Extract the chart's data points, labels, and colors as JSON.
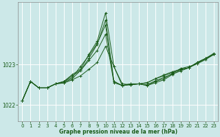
{
  "xlabel": "Graphe pression niveau de la mer (hPa)",
  "ylabel": "",
  "bg_color": "#cce8e8",
  "grid_color": "#ffffff",
  "line_color": "#1a5c1a",
  "marker": "+",
  "ylim": [
    1021.6,
    1024.55
  ],
  "xlim": [
    -0.5,
    23.5
  ],
  "xticks": [
    0,
    1,
    2,
    3,
    4,
    5,
    6,
    7,
    8,
    9,
    10,
    11,
    12,
    13,
    14,
    15,
    16,
    17,
    18,
    19,
    20,
    21,
    22,
    23
  ],
  "yticks": [
    1022,
    1023
  ],
  "series": [
    [
      1022.1,
      1022.58,
      1022.42,
      1022.42,
      1022.52,
      1022.54,
      1022.62,
      1022.72,
      1022.88,
      1023.05,
      1023.45,
      1022.95,
      1022.52,
      1022.5,
      1022.52,
      1022.55,
      1022.65,
      1022.72,
      1022.8,
      1022.88,
      1022.92,
      1023.05,
      1023.15,
      1023.25
    ],
    [
      1022.1,
      1022.58,
      1022.42,
      1022.42,
      1022.52,
      1022.55,
      1022.65,
      1022.85,
      1023.1,
      1023.35,
      1023.75,
      1022.55,
      1022.48,
      1022.5,
      1022.52,
      1022.55,
      1022.65,
      1022.74,
      1022.82,
      1022.88,
      1022.92,
      1023.05,
      1023.15,
      1023.25
    ],
    [
      1022.1,
      1022.58,
      1022.42,
      1022.42,
      1022.52,
      1022.57,
      1022.68,
      1022.95,
      1023.22,
      1023.52,
      1023.98,
      1022.58,
      1022.48,
      1022.5,
      1022.52,
      1022.5,
      1022.6,
      1022.68,
      1022.76,
      1022.84,
      1022.92,
      1023.05,
      1023.15,
      1023.25
    ],
    [
      1022.1,
      1022.58,
      1022.42,
      1022.42,
      1022.52,
      1022.58,
      1022.72,
      1022.85,
      1023.15,
      1023.5,
      1024.1,
      1022.58,
      1022.48,
      1022.52,
      1022.52,
      1022.48,
      1022.55,
      1022.62,
      1022.75,
      1022.87,
      1022.92,
      1023.02,
      1023.12,
      1023.25
    ],
    [
      1022.1,
      1022.58,
      1022.42,
      1022.42,
      1022.52,
      1022.58,
      1022.75,
      1022.88,
      1023.25,
      1023.58,
      1024.28,
      1022.95,
      1022.48,
      1022.52,
      1022.52,
      1022.48,
      1022.58,
      1022.65,
      1022.78,
      1022.9,
      1022.95,
      1023.02,
      1023.15,
      1023.28
    ]
  ]
}
